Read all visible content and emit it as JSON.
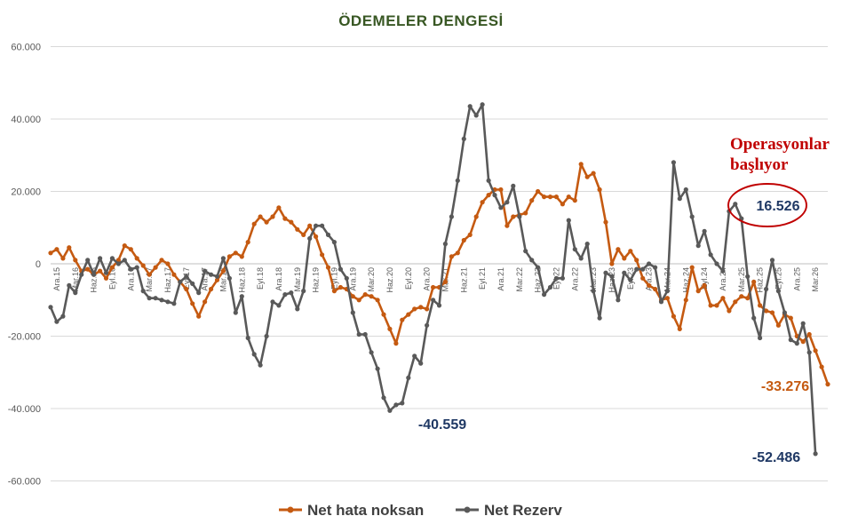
{
  "chart_data": {
    "type": "line",
    "title": "ÖDEMELER  DENGESİ",
    "xlabel": "",
    "ylabel": "",
    "ylim": [
      -60000,
      60000
    ],
    "yticks": [
      60000,
      40000,
      20000,
      0,
      -20000,
      -40000,
      -60000
    ],
    "ytick_labels": [
      "60.000",
      "40.000",
      "20.000",
      "0",
      "-20.000",
      "-40.000",
      "-60.000"
    ],
    "grid": true,
    "legend": "bottom",
    "x_start": "2015-11",
    "x_end": "2026-03",
    "xtick_labels": [
      "Ara.15",
      "Mar.16",
      "Haz.16",
      "Eyl.16",
      "Ara.16",
      "Mar.17",
      "Haz.17",
      "Eyl.17",
      "Ara.17",
      "Mar.18",
      "Haz.18",
      "Eyl.18",
      "Ara.18",
      "Mar.19",
      "Haz.19",
      "Eyl.19",
      "Ara.19",
      "Mar.20",
      "Haz.20",
      "Eyl.20",
      "Ara.20",
      "Mar.21",
      "Haz.21",
      "Eyl.21",
      "Ara.21",
      "Mar.22",
      "Haz.22",
      "Eyl.22",
      "Ara.22",
      "Mar.23",
      "Haz.23",
      "Eyl.23",
      "Ara.23",
      "Mar.24",
      "Haz.24",
      "Eyl.24",
      "Ara.24",
      "Mar.25",
      "Haz.25",
      "Eyl.25",
      "Ara.25",
      "Mar.26"
    ],
    "xtick_offset": 1,
    "xtick_step": 3,
    "series": [
      {
        "name": "Net hata noksan",
        "color": "#C55A11",
        "values": [
          3000,
          4000,
          1500,
          4500,
          1000,
          -2000,
          -1500,
          -3000,
          -2000,
          -4000,
          -1000,
          1000,
          5000,
          4000,
          1500,
          -500,
          -3000,
          -1000,
          1000,
          0,
          -3000,
          -5000,
          -7000,
          -11000,
          -14500,
          -10500,
          -7000,
          -4500,
          -2000,
          2000,
          3000,
          2000,
          6000,
          11000,
          13000,
          11500,
          13000,
          15500,
          12500,
          11500,
          9500,
          8000,
          10500,
          7500,
          2500,
          -1000,
          -7500,
          -6500,
          -7000,
          -9000,
          -10000,
          -8500,
          -9000,
          -10000,
          -14000,
          -18000,
          -22000,
          -15500,
          -14000,
          -12500,
          -12000,
          -12500,
          -6500,
          -6500,
          -5000,
          2000,
          3000,
          6500,
          8000,
          13000,
          17000,
          19000,
          20500,
          20500,
          10500,
          13000,
          13500,
          14000,
          17500,
          20000,
          18500,
          18500,
          18500,
          16500,
          18500,
          17500,
          27500,
          24000,
          25000,
          20500,
          11500,
          0,
          4000,
          1500,
          3500,
          1000,
          -4000,
          -6000,
          -7000,
          -10000,
          -9500,
          -14500,
          -18000,
          -10000,
          -1000,
          -7500,
          -6000,
          -11500,
          -11500,
          -9500,
          -13000,
          -10500,
          -9000,
          -9500,
          -5000,
          -11500,
          -13000,
          -13500,
          -17000,
          -14000,
          -15000,
          -20000,
          -21500,
          -19500,
          -24000,
          -28500,
          -33276
        ]
      },
      {
        "name": "Net Rezerv",
        "color": "#595959",
        "values": [
          -12000,
          -16000,
          -14500,
          -6000,
          -8000,
          -3000,
          1000,
          -3000,
          1500,
          -2500,
          1500,
          0,
          1000,
          -1500,
          -1000,
          -7500,
          -9500,
          -9500,
          -10000,
          -10500,
          -11000,
          -5000,
          -3500,
          -5500,
          -8000,
          -2000,
          -3000,
          -3500,
          1500,
          -4000,
          -13500,
          -9000,
          -20500,
          -25000,
          -28000,
          -20000,
          -10500,
          -11500,
          -8500,
          -8000,
          -12500,
          -7500,
          7000,
          10500,
          10500,
          8000,
          6000,
          -1500,
          -4000,
          -13500,
          -19500,
          -19500,
          -24500,
          -29000,
          -37000,
          -40559,
          -39000,
          -38500,
          -31500,
          -25500,
          -27500,
          -17000,
          -10000,
          -11500,
          5500,
          13000,
          23000,
          34500,
          43500,
          41000,
          44000,
          23000,
          19000,
          15500,
          17000,
          21500,
          13000,
          3500,
          1000,
          -1000,
          -8500,
          -6500,
          -4000,
          -4000,
          12000,
          4000,
          1500,
          5500,
          -7500,
          -15000,
          -2500,
          -3500,
          -10000,
          -2500,
          -4500,
          -1500,
          -1500,
          0,
          -1000,
          -10500,
          -7500,
          28000,
          18000,
          20500,
          13000,
          5000,
          9000,
          2500,
          0,
          -2000,
          14500,
          16526,
          12500,
          -3500,
          -15000,
          -20500,
          -7000,
          1000,
          -7500,
          -13500,
          -21000,
          -22000,
          -16500,
          -24500,
          -52486
        ]
      }
    ],
    "annotations": [
      {
        "text": "-40.559",
        "color": "#1F3864"
      },
      {
        "text": "-33.276",
        "color": "#C55A11"
      },
      {
        "text": "-52.486",
        "color": "#1F3864"
      },
      {
        "text": "16.526",
        "color": "#1F3864"
      },
      {
        "text": "Operasyonlar",
        "color": "#C00000"
      },
      {
        "text": "başlıyor",
        "color": "#C00000"
      }
    ],
    "title_color": "#385723",
    "highlight_color": "#C00000"
  }
}
